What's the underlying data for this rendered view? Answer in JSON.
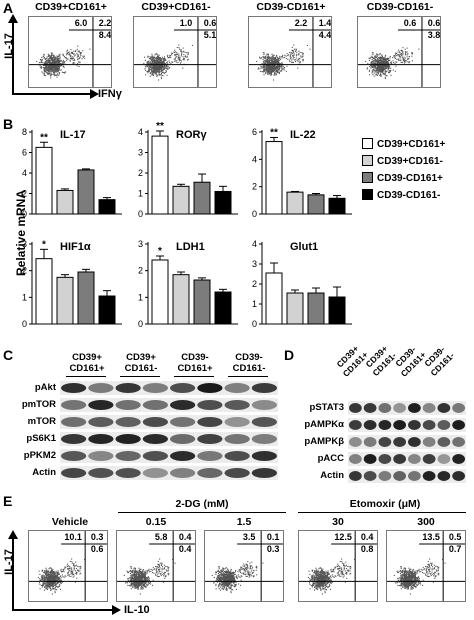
{
  "panels": {
    "A": {
      "label": "A",
      "y_axis": "IL-17",
      "x_axis": "IFNγ",
      "plots": [
        {
          "title": "CD39+CD161+",
          "q_ul": "6.0",
          "q_ur": "2.2",
          "q_lr": "8.4"
        },
        {
          "title": "CD39+CD161-",
          "q_ul": "1.0",
          "q_ur": "0.6",
          "q_lr": "5.1"
        },
        {
          "title": "CD39-CD161+",
          "q_ul": "2.2",
          "q_ur": "1.4",
          "q_lr": "4.4"
        },
        {
          "title": "CD39-CD161-",
          "q_ul": "0.6",
          "q_ur": "0.6",
          "q_lr": "3.8"
        }
      ]
    },
    "B": {
      "label": "B",
      "ylabel": "Relative mRNA",
      "legend": [
        "CD39+CD161+",
        "CD39+CD161-",
        "CD39-CD161+",
        "CD39-CD161-"
      ],
      "colors": [
        "#ffffff",
        "#d2d2d2",
        "#7c7c7c",
        "#000000"
      ]
    },
    "C": {
      "label": "C",
      "columns": [
        "CD39+\nCD161+",
        "CD39+\nCD161-",
        "CD39-\nCD161+",
        "CD39-\nCD161-"
      ],
      "rows": [
        "pAkt",
        "pmTOR",
        "mTOR",
        "pS6K1",
        "pPKM2",
        "Actin"
      ]
    },
    "D": {
      "label": "D",
      "columns": [
        "CD39+\nCD161+",
        "CD39+\nCD161-",
        "CD39-\nCD161+",
        "CD39-\nCD161-"
      ],
      "rows": [
        "pSTAT3",
        "pAMPKα",
        "pAMPKβ",
        "pACC",
        "Actin"
      ]
    },
    "E": {
      "label": "E",
      "y_axis": "IL-17",
      "x_axis": "IL-10",
      "group_2dg": "2-DG (mM)",
      "group_etomoxir": "Etomoxir (μM)",
      "plots": [
        {
          "title": "Vehicle",
          "q_ul": "10.1",
          "q_ur": "0.3",
          "q_lr": "0.6"
        },
        {
          "title": "0.15",
          "q_ul": "5.8",
          "q_ur": "0.4",
          "q_lr": "0.4"
        },
        {
          "title": "1.5",
          "q_ul": "3.5",
          "q_ur": "0.1",
          "q_lr": "0.3"
        },
        {
          "title": "30",
          "q_ul": "12.5",
          "q_ur": "0.4",
          "q_lr": "0.8"
        },
        {
          "title": "300",
          "q_ul": "13.5",
          "q_ur": "0.5",
          "q_lr": "0.7"
        }
      ]
    }
  },
  "chart_data": [
    {
      "type": "bar",
      "title": "IL-17",
      "categories": [
        "CD39+CD161+",
        "CD39+CD161-",
        "CD39-CD161+",
        "CD39-CD161-"
      ],
      "values": [
        6.5,
        2.3,
        4.3,
        1.4
      ],
      "errors": [
        0.5,
        0.15,
        0.1,
        0.2
      ],
      "ylim": [
        0,
        8
      ],
      "yticks": [
        0,
        2,
        4,
        6,
        8
      ],
      "stars": "**"
    },
    {
      "type": "bar",
      "title": "RORγ",
      "categories": [
        "CD39+CD161+",
        "CD39+CD161-",
        "CD39-CD161+",
        "CD39-CD161-"
      ],
      "values": [
        3.8,
        1.35,
        1.55,
        1.1
      ],
      "errors": [
        0.25,
        0.1,
        0.4,
        0.25
      ],
      "ylim": [
        0,
        4
      ],
      "yticks": [
        0,
        1,
        2,
        3,
        4
      ],
      "stars": "**"
    },
    {
      "type": "bar",
      "title": "IL-22",
      "categories": [
        "CD39+CD161+",
        "CD39+CD161-",
        "CD39-CD161+",
        "CD39-CD161-"
      ],
      "values": [
        5.3,
        1.6,
        1.4,
        1.15
      ],
      "errors": [
        0.3,
        0.05,
        0.1,
        0.2
      ],
      "ylim": [
        0,
        6
      ],
      "yticks": [
        0,
        2,
        4,
        6
      ],
      "stars": "**"
    },
    {
      "type": "bar",
      "title": "HIF1α",
      "categories": [
        "CD39+CD161+",
        "CD39+CD161-",
        "CD39-CD161+",
        "CD39-CD161-"
      ],
      "values": [
        2.45,
        1.75,
        1.95,
        1.05
      ],
      "errors": [
        0.35,
        0.1,
        0.1,
        0.2
      ],
      "ylim": [
        0,
        3
      ],
      "yticks": [
        0,
        1,
        2,
        3
      ],
      "stars": "*"
    },
    {
      "type": "bar",
      "title": "LDH1",
      "categories": [
        "CD39+CD161+",
        "CD39+CD161-",
        "CD39-CD161+",
        "CD39-CD161-"
      ],
      "values": [
        2.4,
        1.85,
        1.65,
        1.2
      ],
      "errors": [
        0.15,
        0.1,
        0.08,
        0.1
      ],
      "ylim": [
        0,
        3
      ],
      "yticks": [
        0,
        1,
        2,
        3
      ],
      "stars": "*"
    },
    {
      "type": "bar",
      "title": "Glut1",
      "categories": [
        "CD39+CD161+",
        "CD39+CD161-",
        "CD39-CD161+",
        "CD39-CD161-"
      ],
      "values": [
        2.55,
        1.55,
        1.55,
        1.35
      ],
      "errors": [
        0.5,
        0.15,
        0.25,
        0.5
      ],
      "ylim": [
        0,
        4
      ],
      "yticks": [
        0,
        1,
        2,
        3,
        4
      ],
      "stars": ""
    }
  ]
}
